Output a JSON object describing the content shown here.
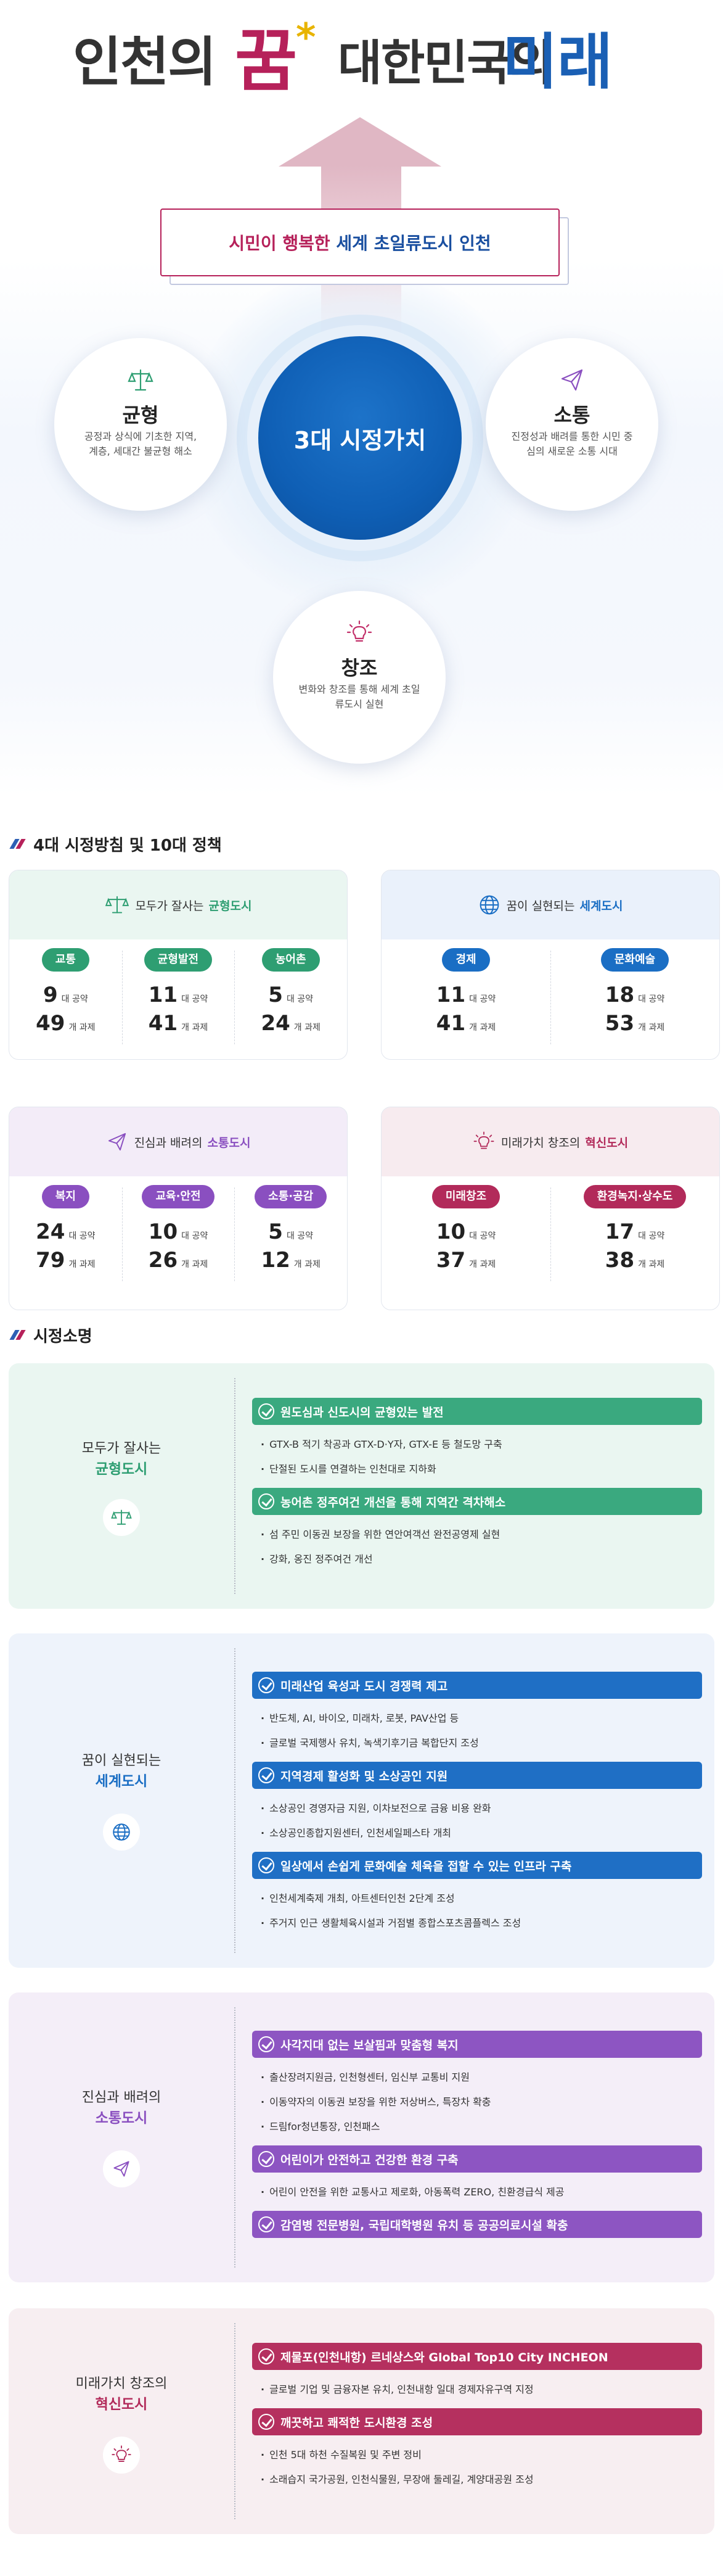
{
  "hero": {
    "title_part1": "인천의",
    "title_part2": "꿈",
    "title_star": "*",
    "title_part3": "대한민국의",
    "title_part4": "미래",
    "banner": {
      "part1": "시민이 행복한",
      "part2": "세계 초일류도시 인천"
    },
    "core": "3대 시정가치",
    "values": [
      {
        "title": "균형",
        "desc": "공정과 상식에 기초한 지역, 계층, 세대간 불균형 해소",
        "icon": "scale-icon"
      },
      {
        "title": "소통",
        "desc": "진정성과 배려를 통한 시민 중심의 새로운 소통 시대",
        "icon": "paper-plane-icon"
      },
      {
        "title": "창조",
        "desc": "변화와 창조를 통해 세계 초일류도시 실현",
        "icon": "lightbulb-icon"
      }
    ]
  },
  "policy": {
    "heading": "4대 시정방침 및 10대 정책",
    "unit_pledge": "대 공약",
    "unit_task": "개 과제",
    "cards": [
      {
        "prefix": "모두가 잘사는",
        "name": "균형도시",
        "color": "#2e9e72",
        "bg": "#eaf6f1",
        "icon": "scale-icon",
        "items": [
          {
            "label": "교통",
            "pledges": "9",
            "tasks": "49"
          },
          {
            "label": "균형발전",
            "pledges": "11",
            "tasks": "41"
          },
          {
            "label": "농어촌",
            "pledges": "5",
            "tasks": "24"
          }
        ]
      },
      {
        "prefix": "꿈이 실현되는",
        "name": "세계도시",
        "color": "#1a6ec4",
        "bg": "#eaf1fb",
        "icon": "globe-icon",
        "items": [
          {
            "label": "경제",
            "pledges": "11",
            "tasks": "41"
          },
          {
            "label": "문화예술",
            "pledges": "18",
            "tasks": "53"
          }
        ]
      },
      {
        "prefix": "진심과 배려의",
        "name": "소통도시",
        "color": "#8a4fc0",
        "bg": "#f3ecf8",
        "icon": "paper-plane-icon",
        "items": [
          {
            "label": "복지",
            "pledges": "24",
            "tasks": "79"
          },
          {
            "label": "교육·안전",
            "pledges": "10",
            "tasks": "26"
          },
          {
            "label": "소통·공감",
            "pledges": "5",
            "tasks": "12"
          }
        ]
      },
      {
        "prefix": "미래가치 창조의",
        "name": "혁신도시",
        "color": "#b22a5a",
        "bg": "#f7ebef",
        "icon": "lightbulb-icon",
        "items": [
          {
            "label": "미래창조",
            "pledges": "10",
            "tasks": "37"
          },
          {
            "label": "환경녹지·상수도",
            "pledges": "17",
            "tasks": "38"
          }
        ]
      }
    ]
  },
  "mission": {
    "heading": "시정소명",
    "blocks": [
      {
        "line1": "모두가 잘사는",
        "line2": "균형도시",
        "color": "#2e9e72",
        "bar": "#3aa97f",
        "bg": "#eaf6f1",
        "icon": "scale-icon",
        "groups": [
          {
            "title": "원도심과 신도시의 균형있는 발전",
            "items": [
              "GTX-B 적기 착공과 GTX-D·Y자, GTX-E 등 철도망 구축",
              "단절된 도시를 연결하는 인천대로 지하화"
            ]
          },
          {
            "title": "농어촌 정주여건 개선을 통해 지역간 격차해소",
            "items": [
              "섬 주민 이동권 보장을 위한 연안여객선 완전공영제 실현",
              "강화, 옹진 정주여건 개선"
            ]
          }
        ]
      },
      {
        "line1": "꿈이 실현되는",
        "line2": "세계도시",
        "color": "#1a6ec4",
        "bar": "#1f6fc5",
        "bg": "#eef3fb",
        "icon": "globe-icon",
        "groups": [
          {
            "title": "미래산업 육성과 도시 경쟁력 제고",
            "items": [
              "반도체, AI, 바이오, 미래차, 로봇, PAV산업 등",
              "글로벌 국제행사 유치, 녹색기후기금 복합단지 조성"
            ]
          },
          {
            "title": "지역경제 활성화 및 소상공인 지원",
            "items": [
              "소상공인 경영자금 지원, 이차보전으로 금융 비용 완화",
              "소상공인종합지원센터, 인천세일페스타 개최"
            ]
          },
          {
            "title": "일상에서 손쉽게 문화예술 체육을 접할 수 있는 인프라 구축",
            "items": [
              "인천세계축제 개최, 아트센터인천 2단계 조성",
              "주거지 인근 생활체육시설과 거점별 종합스포츠콤플렉스 조성"
            ]
          }
        ]
      },
      {
        "line1": "진심과 배려의",
        "line2": "소통도시",
        "color": "#8a4fc0",
        "bar": "#8d55c2",
        "bg": "#f4eef8",
        "icon": "paper-plane-icon",
        "groups": [
          {
            "title": "사각지대 없는 보살핌과 맞춤형 복지",
            "items": [
              "출산장려지원금, 인천형센터, 임신부 교통비 지원",
              "이동약자의 이동권 보장을 위한 저상버스, 특장차 확충",
              "드림for청년통장, 인천패스"
            ]
          },
          {
            "title": "어린이가 안전하고 건강한 환경 구축",
            "items": [
              "어린이 안전을 위한 교통사고 제로화, 아동폭력 ZERO, 친환경급식 제공"
            ]
          },
          {
            "title": "감염병 전문병원, 국립대학병원 유치 등 공공의료시설 확충",
            "items": []
          }
        ]
      },
      {
        "line1": "미래가치 창조의",
        "line2": "혁신도시",
        "color": "#b22a5a",
        "bar": "#b5305f",
        "bg": "#f7eef1",
        "icon": "lightbulb-icon",
        "groups": [
          {
            "title": "제물포(인천내항) 르네상스와 Global Top10 City INCHEON",
            "items": [
              "글로벌 기업 및 금융자본 유치, 인천내항 일대 경제자유구역 지정"
            ]
          },
          {
            "title": "깨끗하고 쾌적한 도시환경 조성",
            "items": [
              "인천 5대 하천 수질복원 및 주변 정비",
              "소래습지 국가공원, 인천식물원, 무장애 둘레길, 계양대공원 조성"
            ]
          }
        ]
      }
    ]
  }
}
